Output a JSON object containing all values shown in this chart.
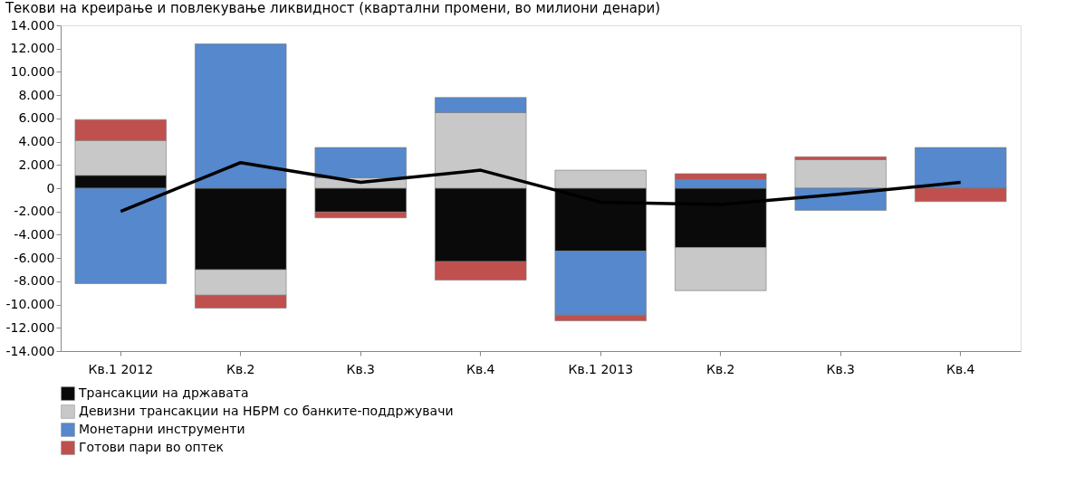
{
  "chart_data": {
    "type": "bar",
    "title": "Текови на креирање и повлекување ликвидност (квартални промени, во милиони денари)",
    "categories": [
      "Кв.1 2012",
      "Кв.2",
      "Кв.3",
      "Кв.4",
      "Кв.1 2013",
      "Кв.2",
      "Кв.3",
      "Кв.4"
    ],
    "stacked": true,
    "series": [
      {
        "name": "Трансакции на државата",
        "color": "#0a0a0a",
        "values": [
          1100,
          -7000,
          -2050,
          -6300,
          -5400,
          -5100,
          0,
          0
        ]
      },
      {
        "name": "Девизни трансакции на НБРМ со банките-поддржувачи",
        "color": "#c8c8c8",
        "values": [
          3000,
          -2200,
          900,
          6500,
          1550,
          -3700,
          2450,
          0
        ]
      },
      {
        "name": "Монетарни инструменти",
        "color": "#5588cc",
        "values": [
          -8200,
          12400,
          2600,
          1300,
          -5500,
          750,
          -1900,
          3500
        ]
      },
      {
        "name": "Готови пари во оптек",
        "color": "#c0504d",
        "values": [
          1800,
          -1100,
          -500,
          -1600,
          -500,
          500,
          250,
          -1150
        ]
      },
      {
        "type": "line",
        "color": "#000000",
        "values": [
          -2000,
          2200,
          500,
          1550,
          -1200,
          -1400,
          -500,
          500
        ]
      }
    ],
    "ylim": [
      -14000,
      14000
    ],
    "yticks": [
      {
        "value": -14000,
        "label": "-14.000"
      },
      {
        "value": -12000,
        "label": "-12.000"
      },
      {
        "value": -10000,
        "label": "-10.000"
      },
      {
        "value": -8000,
        "label": "-8.000"
      },
      {
        "value": -6000,
        "label": "-6.000"
      },
      {
        "value": -4000,
        "label": "-4.000"
      },
      {
        "value": -2000,
        "label": "-2.000"
      },
      0,
      {
        "value": 2000,
        "label": "2.000"
      },
      {
        "value": 4000,
        "label": "4.000"
      },
      {
        "value": 6000,
        "label": "6.000"
      },
      {
        "value": 8000,
        "label": "8.000"
      },
      {
        "value": 10000,
        "label": "10.000"
      },
      {
        "value": 12000,
        "label": "12.000"
      },
      {
        "value": 14000,
        "label": "14.000"
      }
    ],
    "grid": false,
    "legend": "bottom"
  }
}
